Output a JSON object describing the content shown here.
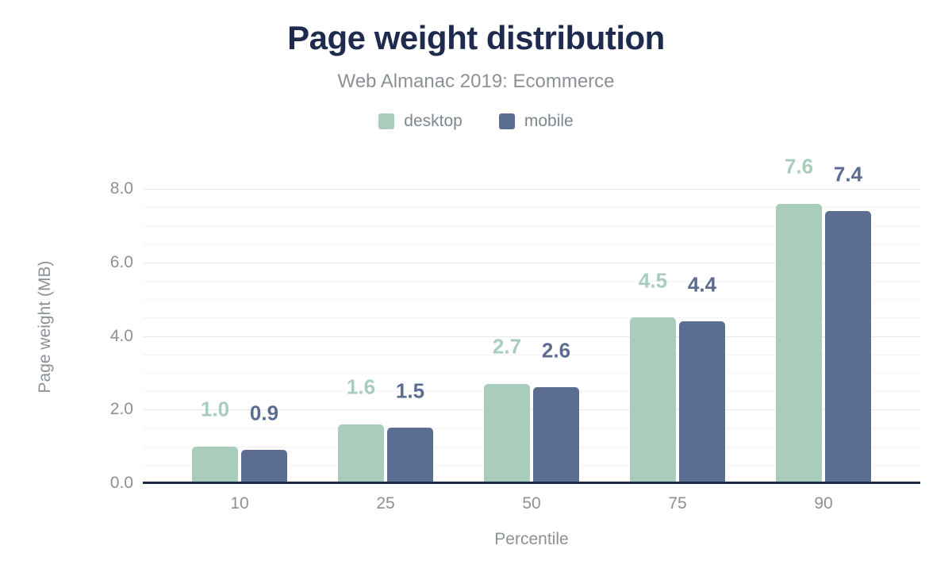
{
  "chart_data": {
    "type": "bar",
    "title": "Page weight distribution",
    "subtitle": "Web Almanac 2019: Ecommerce",
    "xlabel": "Percentile",
    "ylabel": "Page weight (MB)",
    "categories": [
      "10",
      "25",
      "50",
      "75",
      "90"
    ],
    "series": [
      {
        "name": "desktop",
        "color": "#a8cdba",
        "values": [
          1.0,
          1.6,
          2.7,
          4.5,
          7.6
        ]
      },
      {
        "name": "mobile",
        "color": "#5b6d90",
        "values": [
          0.9,
          1.5,
          2.6,
          4.4,
          7.4
        ]
      }
    ],
    "ylim": [
      0,
      8.5
    ],
    "yticks": [
      0.0,
      2.0,
      4.0,
      6.0,
      8.0
    ],
    "minor_grid_step": 0.5,
    "grid": true,
    "legend_position": "top",
    "value_labels": true
  },
  "colors": {
    "title": "#1e2a4e",
    "subtitle": "#8b9196",
    "tick_label": "#8b9196",
    "legend_label": "#7f878e",
    "axis_line": "#1c2a47",
    "grid_major": "#e8e8e8",
    "grid_minor": "#f4f4f4",
    "background": "#ffffff"
  }
}
